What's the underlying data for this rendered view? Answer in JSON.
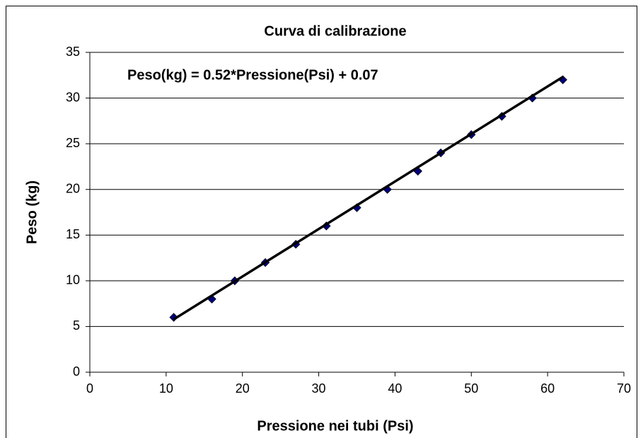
{
  "chart_data": {
    "type": "scatter",
    "title": "Curva di calibrazione",
    "x_label": "Pressione nei tubi (Psi)",
    "y_label": "Peso (kg)",
    "annotation": "Peso(kg) = 0.52*Pressione(Psi) + 0.07",
    "trendline": {
      "slope": 0.52,
      "intercept": 0.07,
      "color": "#000000"
    },
    "series": [
      {
        "color": "#000080",
        "x": [
          11,
          16,
          19,
          23,
          27,
          31,
          35,
          39,
          43,
          46,
          50,
          54,
          58,
          62
        ],
        "values": [
          6,
          8,
          10,
          12,
          14,
          16,
          18,
          20,
          22,
          24,
          26,
          28,
          30,
          32
        ]
      }
    ],
    "xlim": [
      0,
      70
    ],
    "xticks": [
      0,
      10,
      20,
      30,
      40,
      50,
      60,
      70
    ],
    "ylim": [
      0,
      35
    ],
    "yticks": [
      0,
      5,
      10,
      15,
      20,
      25,
      30,
      35
    ],
    "grid": true
  }
}
